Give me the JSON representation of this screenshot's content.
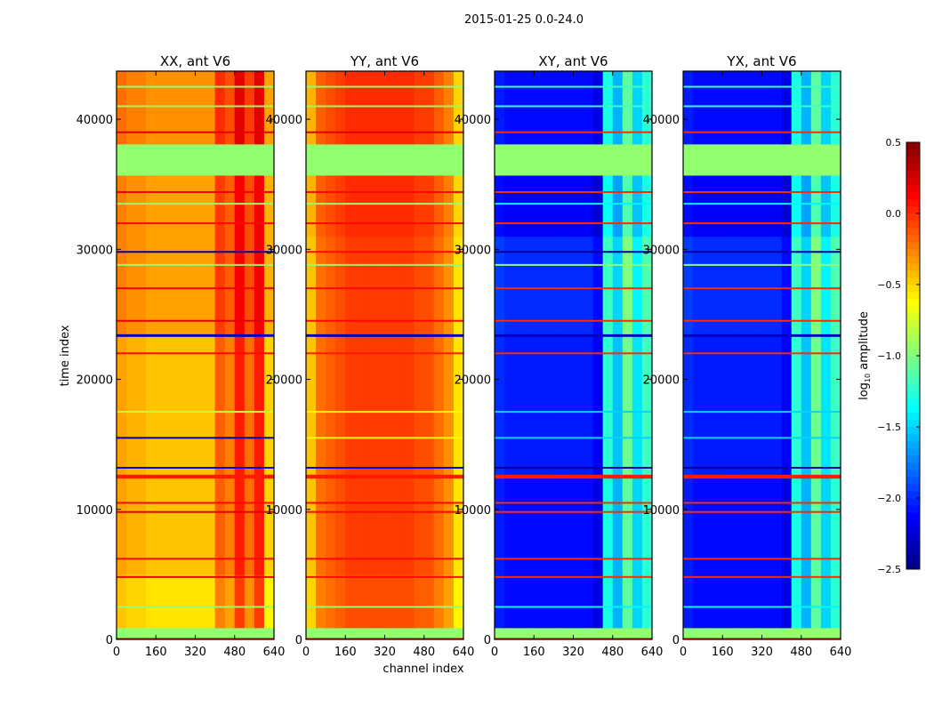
{
  "chart_data": {
    "type": "heatmap",
    "title": "2015-01-25 0.0-24.0",
    "xlabel": "channel index",
    "ylabel": "time index",
    "xlim": [
      0,
      640
    ],
    "ylim": [
      0,
      43700
    ],
    "xticks": [
      0,
      160,
      320,
      480,
      640
    ],
    "yticks": [
      0,
      10000,
      20000,
      30000,
      40000
    ],
    "channel_bin_width": 40,
    "colorbar": {
      "label_prefix": "log",
      "label_sub": "10",
      "label_suffix": " amplitude",
      "range": [
        -2.5,
        0.5
      ],
      "ticks": [
        "0.5",
        "0.0",
        "−0.5",
        "−1.0",
        "−1.5",
        "−2.0",
        "−2.5"
      ],
      "tick_values": [
        0.5,
        0.0,
        -0.5,
        -1.0,
        -1.5,
        -2.0,
        -2.5
      ],
      "colormap": "jet"
    },
    "panels": [
      {
        "title": "XX, ant V6",
        "profile": [
          -0.35,
          -0.4,
          -0.4,
          -0.45,
          -0.45,
          -0.45,
          -0.45,
          -0.45,
          -0.45,
          -0.45,
          -0.15,
          -0.25,
          0.05,
          -0.2,
          0.05,
          -0.5
        ]
      },
      {
        "title": "YY, ant V6",
        "profile": [
          -0.45,
          -0.2,
          -0.15,
          -0.1,
          -0.05,
          -0.05,
          -0.05,
          -0.05,
          -0.05,
          -0.05,
          -0.05,
          -0.1,
          -0.1,
          -0.2,
          -0.3,
          -0.55
        ]
      },
      {
        "title": "XY, ant V6",
        "profile": [
          -2.05,
          -2.1,
          -2.1,
          -2.1,
          -2.1,
          -2.1,
          -2.1,
          -2.1,
          -2.1,
          -2.1,
          -2.2,
          -1.3,
          -1.6,
          -1.1,
          -1.5,
          -1.25
        ]
      },
      {
        "title": "YX, ant V6",
        "profile": [
          -2.05,
          -2.1,
          -2.1,
          -2.1,
          -2.1,
          -2.1,
          -2.1,
          -2.1,
          -2.1,
          -2.1,
          -2.2,
          -1.3,
          -1.6,
          -1.1,
          -1.5,
          -1.25
        ]
      }
    ],
    "segments": [
      {
        "t0": 0,
        "t1": 150,
        "flag": 0.05
      },
      {
        "t0": 150,
        "t1": 900,
        "flag": -0.95
      },
      {
        "t0": 900,
        "t1": 5000,
        "offsets": [
          -0.1,
          -0.05,
          0.0,
          0.0
        ]
      },
      {
        "t0": 5000,
        "t1": 12400,
        "offsets": [
          0.0,
          0.0,
          0.0,
          0.0
        ]
      },
      {
        "t0": 12400,
        "t1": 12700,
        "flag": 0.05
      },
      {
        "t0": 12700,
        "t1": 23300,
        "offsets": [
          0.0,
          0.0,
          0.05,
          0.05
        ]
      },
      {
        "t0": 23300,
        "t1": 23500,
        "flag": -2.3
      },
      {
        "t0": 23500,
        "t1": 31000,
        "offsets": [
          0.1,
          0.0,
          0.1,
          0.1
        ]
      },
      {
        "t0": 31000,
        "t1": 35700,
        "offsets": [
          0.1,
          0.05,
          -0.05,
          -0.05
        ]
      },
      {
        "t0": 35700,
        "t1": 38100,
        "flag": -0.95
      },
      {
        "t0": 38100,
        "t1": 43700,
        "offsets": [
          0.15,
          0.05,
          0.0,
          0.0
        ]
      }
    ],
    "lines": [
      {
        "t": 2500,
        "values": [
          -0.95,
          -0.95,
          -1.4,
          -1.4
        ]
      },
      {
        "t": 4800,
        "values": [
          0.2,
          0.1,
          0.0,
          0.0
        ]
      },
      {
        "t": 6200,
        "values": [
          0.1,
          0.1,
          0.0,
          0.0
        ]
      },
      {
        "t": 9800,
        "values": [
          0.2,
          0.1,
          0.0,
          0.0
        ]
      },
      {
        "t": 10500,
        "values": [
          0.1,
          0.1,
          0.0,
          0.0
        ]
      },
      {
        "t": 13200,
        "values": [
          -2.2,
          -2.2,
          -2.4,
          -2.4
        ]
      },
      {
        "t": 15500,
        "values": [
          -2.4,
          -0.6,
          -1.5,
          -1.5
        ]
      },
      {
        "t": 17500,
        "values": [
          -0.8,
          -0.6,
          -1.5,
          -1.5
        ]
      },
      {
        "t": 22000,
        "values": [
          0.1,
          0.05,
          0.0,
          0.0
        ]
      },
      {
        "t": 24500,
        "values": [
          0.2,
          0.1,
          0.0,
          0.0
        ]
      },
      {
        "t": 27000,
        "values": [
          0.15,
          0.1,
          0.0,
          0.0
        ]
      },
      {
        "t": 28800,
        "values": [
          -0.95,
          -0.95,
          -0.95,
          -0.95
        ]
      },
      {
        "t": 29800,
        "values": [
          -2.4,
          0.1,
          -2.4,
          -2.4
        ]
      },
      {
        "t": 32000,
        "values": [
          0.1,
          0.1,
          0.0,
          0.0
        ]
      },
      {
        "t": 33500,
        "values": [
          -0.95,
          -0.95,
          -1.4,
          -1.4
        ]
      },
      {
        "t": 34400,
        "values": [
          0.15,
          0.1,
          0.0,
          0.0
        ]
      },
      {
        "t": 39000,
        "values": [
          0.2,
          0.2,
          0.0,
          0.0
        ]
      },
      {
        "t": 41000,
        "values": [
          -0.95,
          -0.95,
          -1.2,
          -1.2
        ]
      },
      {
        "t": 42500,
        "values": [
          -0.95,
          -0.95,
          -1.2,
          -1.2
        ]
      }
    ]
  }
}
